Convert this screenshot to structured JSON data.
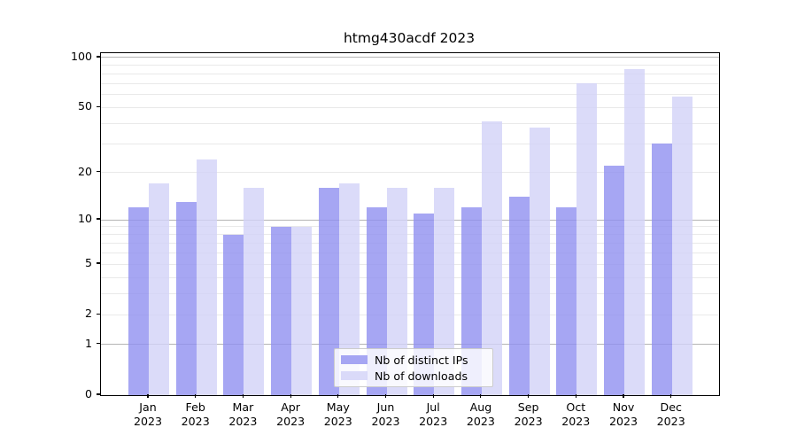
{
  "chart_data": {
    "type": "bar",
    "title": "htmg430acdf 2023",
    "x_tick_months": [
      "Jan",
      "Feb",
      "Mar",
      "Apr",
      "May",
      "Jun",
      "Jul",
      "Aug",
      "Sep",
      "Oct",
      "Nov",
      "Dec"
    ],
    "x_tick_year": "2023",
    "categories": [
      "Jan 2023",
      "Feb 2023",
      "Mar 2023",
      "Apr 2023",
      "May 2023",
      "Jun 2023",
      "Jul 2023",
      "Aug 2023",
      "Sep 2023",
      "Oct 2023",
      "Nov 2023",
      "Dec 2023"
    ],
    "series": [
      {
        "name": "Nb of distinct IPs",
        "color": "#9090f0",
        "values": [
          12,
          13,
          8,
          9,
          16,
          12,
          11,
          12,
          14,
          12,
          22,
          30
        ]
      },
      {
        "name": "Nb of downloads",
        "color": "#d2d2f7",
        "values": [
          17,
          24,
          16,
          9,
          17,
          16,
          16,
          41,
          38,
          70,
          85,
          58
        ]
      }
    ],
    "y_ticks": [
      0,
      1,
      2,
      5,
      10,
      20,
      50,
      100
    ],
    "y_scale": "log10(1+x)",
    "ylim": [
      0,
      101
    ],
    "grid": true,
    "legend_position": "lower center inside plot"
  },
  "colors": {
    "grid_major": "#b4b4b4",
    "grid_minor": "#e9e9e9",
    "axis": "#000000",
    "legend_border": "#cccccc"
  }
}
